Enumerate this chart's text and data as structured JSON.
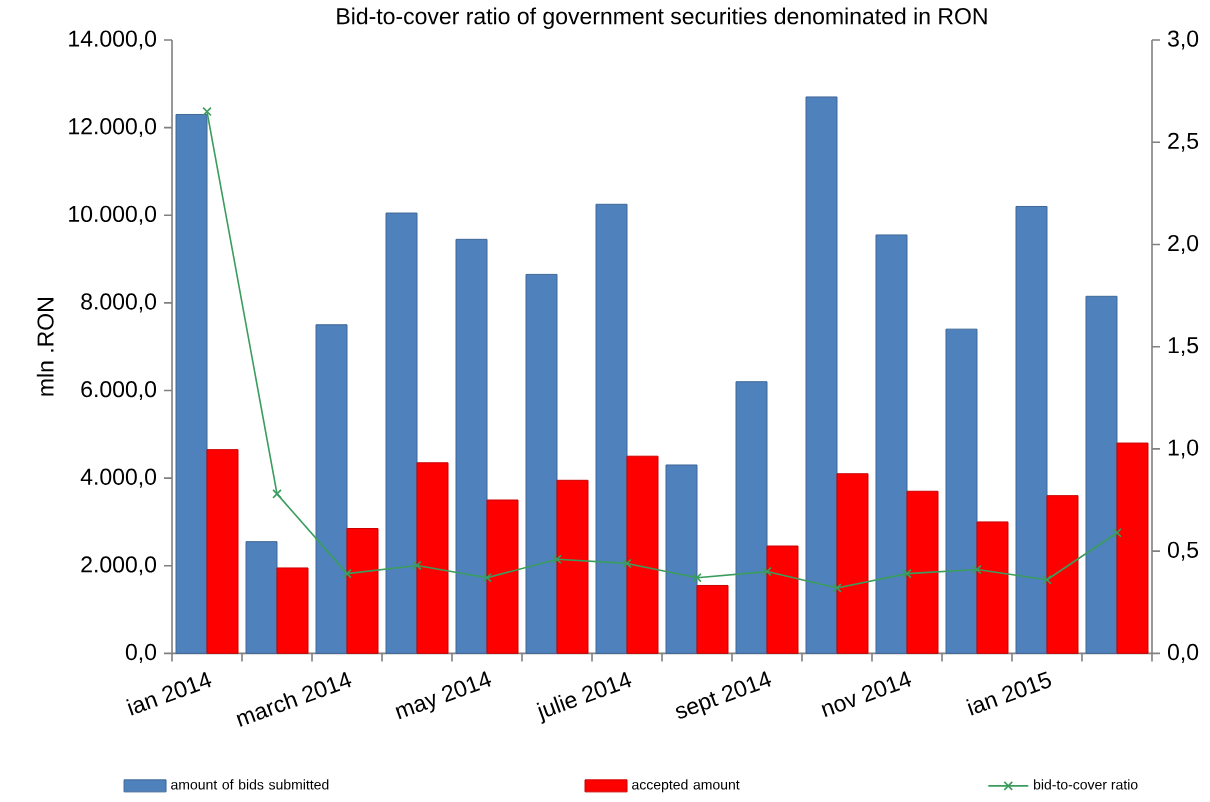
{
  "chart_data": {
    "type": "bar",
    "title": "Bid-to-cover ratio of government securities denominated in RON",
    "ylabel": "mln .RON",
    "categories": [
      "ian 2014",
      null,
      "march 2014",
      null,
      "may 2014",
      null,
      "julie 2014",
      null,
      "sept 2014",
      null,
      "nov 2014",
      null,
      "ian 2015",
      null
    ],
    "series": [
      {
        "name": "amount of bids submitted",
        "color": "#4f81bd",
        "values": [
          12300,
          2550,
          7500,
          10050,
          9450,
          8650,
          10250,
          4300,
          6200,
          12700,
          9550,
          7400,
          10200,
          8150
        ]
      },
      {
        "name": "accepted amount",
        "color": "#ff0000",
        "values": [
          4650,
          1950,
          2850,
          4350,
          3500,
          3950,
          4500,
          1550,
          2450,
          4100,
          3700,
          3000,
          3600,
          4800
        ]
      },
      {
        "name": "bid-to-cover ratio",
        "type": "line",
        "axis": "y2",
        "color": "#3a9d5d",
        "marker": "cross",
        "values": [
          2.65,
          0.78,
          0.39,
          0.43,
          0.37,
          0.46,
          0.44,
          0.37,
          0.4,
          0.32,
          0.39,
          0.41,
          0.36,
          0.59
        ]
      }
    ],
    "ylim": [
      0,
      14000
    ],
    "yticks": [
      {
        "value": 0,
        "label": "0,0"
      },
      {
        "value": 2000,
        "label": "2.000,0"
      },
      {
        "value": 4000,
        "label": "4.000,0"
      },
      {
        "value": 6000,
        "label": "6.000,0"
      },
      {
        "value": 8000,
        "label": "8.000,0"
      },
      {
        "value": 10000,
        "label": "10.000,0"
      },
      {
        "value": 12000,
        "label": "12.000,0"
      },
      {
        "value": 14000,
        "label": "14.000,0"
      }
    ],
    "y2lim": [
      0,
      3
    ],
    "y2ticks": [
      {
        "value": 0,
        "label": "0,0"
      },
      {
        "value": 0.5,
        "label": "0,5"
      },
      {
        "value": 1,
        "label": "1,0"
      },
      {
        "value": 1.5,
        "label": "1,5"
      },
      {
        "value": 2,
        "label": "2,0"
      },
      {
        "value": 2.5,
        "label": "2,5"
      },
      {
        "value": 3,
        "label": "3,0"
      }
    ],
    "legend": "bottom"
  }
}
